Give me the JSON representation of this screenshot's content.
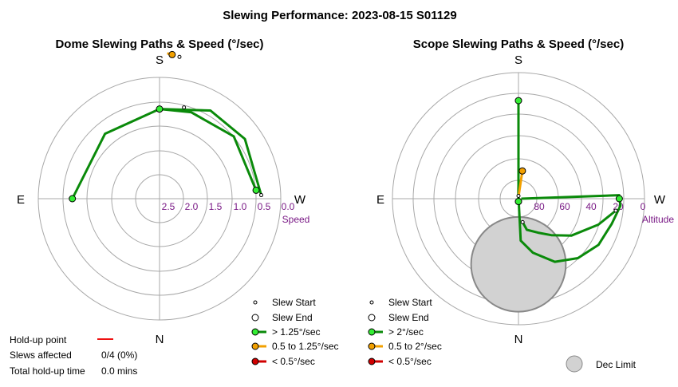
{
  "title": "Slewing Performance: 2023-08-15 S01129",
  "colors": {
    "grid": "#a8a8a8",
    "fast": "#0a8a0a",
    "fast_marker": "#33ee33",
    "medium": "#f2a000",
    "slow": "#d00000",
    "dec_limit": "#d2d2d2",
    "tick": "#7a1a86",
    "holdup": "#ee1111"
  },
  "chart_data": [
    {
      "type": "polar-path",
      "title": "Dome Slewing Paths & Speed (°/sec)",
      "directions": {
        "top": "S",
        "bottom": "N",
        "left": "E",
        "right": "W"
      },
      "radial_axis": {
        "label": "Speed",
        "ticks": [
          "2.5",
          "2.0",
          "1.5",
          "1.0",
          "0.5",
          "0.0"
        ],
        "tick_values": [
          2.5,
          2.0,
          1.5,
          1.0,
          0.5,
          0.0
        ],
        "range": [
          3.0,
          0.0
        ]
      },
      "paths": [
        {
          "speed_class": "fast",
          "points": [
            [
              270,
              1.7
            ],
            [
              220,
              1.75
            ],
            [
              180,
              1.65
            ],
            [
              160,
              1.6
            ],
            [
              130,
              1.5
            ],
            [
              95,
              1.5
            ]
          ]
        },
        {
          "speed_class": "fast",
          "points": [
            [
              180,
              1.65
            ],
            [
              150,
              1.4
            ],
            [
              125,
              1.35
            ],
            [
              92,
              1.4
            ]
          ]
        },
        {
          "speed_class": "medium",
          "points": [
            [
              177,
              0.5
            ],
            [
              175,
              0.52
            ]
          ]
        }
      ],
      "start_markers": [
        [
          172,
          0.55
        ],
        [
          165,
          1.55
        ],
        [
          92,
          1.4
        ]
      ],
      "end_markers": [
        {
          "az": 175,
          "r": 0.52,
          "speed_class": "medium"
        },
        {
          "az": 180,
          "r": 1.65,
          "speed_class": "fast"
        },
        {
          "az": 270,
          "r": 1.7,
          "speed_class": "fast"
        },
        {
          "az": 95,
          "r": 1.5,
          "speed_class": "fast"
        }
      ],
      "legend": [
        {
          "kind": "start",
          "label": "Slew Start"
        },
        {
          "kind": "end",
          "label": "Slew End"
        },
        {
          "kind": "line",
          "speed_class": "fast",
          "label": "> 1.25°/sec"
        },
        {
          "kind": "line",
          "speed_class": "medium",
          "label": "0.5 to 1.25°/sec"
        },
        {
          "kind": "line",
          "speed_class": "slow",
          "label": "< 0.5°/sec"
        }
      ]
    },
    {
      "type": "polar-path",
      "title": "Scope Slewing Paths & Speed (°/sec)",
      "directions": {
        "top": "S",
        "bottom": "N",
        "left": "E",
        "right": "W"
      },
      "radial_axis": {
        "label": "Altitude",
        "ticks": [
          "80",
          "60",
          "40",
          "20",
          "0"
        ],
        "tick_values": [
          80,
          60,
          40,
          20,
          0
        ],
        "range": [
          90,
          0
        ]
      },
      "paths": [
        {
          "speed_class": "fast",
          "points": [
            [
              90,
              88
            ],
            [
              92,
              18
            ],
            [
              86,
              17
            ],
            [
              75,
              21
            ],
            [
              60,
              24
            ],
            [
              45,
              30
            ],
            [
              30,
              38
            ],
            [
              15,
              50
            ],
            [
              3,
              60
            ],
            [
              182,
              86
            ],
            [
              180,
              80
            ],
            [
              180,
              20
            ]
          ]
        },
        {
          "speed_class": "fast",
          "points": [
            [
              83,
              20
            ],
            [
              72,
              30
            ],
            [
              55,
              44
            ],
            [
              42,
              55
            ],
            [
              30,
              62
            ],
            [
              15,
              67
            ],
            [
              10,
              73
            ]
          ]
        },
        {
          "speed_class": "medium",
          "points": [
            [
              176,
              88
            ],
            [
              172,
              70
            ]
          ]
        }
      ],
      "start_markers": [
        [
          10,
          73
        ],
        [
          180,
          88
        ],
        [
          83,
          20
        ]
      ],
      "end_markers": [
        {
          "az": 180,
          "r": 20,
          "speed_class": "fast"
        },
        {
          "az": 90,
          "r": 18,
          "speed_class": "fast"
        },
        {
          "az": 0,
          "r": 88,
          "speed_class": "fast"
        },
        {
          "az": 172,
          "r": 70,
          "speed_class": "medium"
        }
      ],
      "dec_limit": {
        "az": 0,
        "alt": 50,
        "radius_alt": 23
      },
      "legend": [
        {
          "kind": "start",
          "label": "Slew Start"
        },
        {
          "kind": "end",
          "label": "Slew End"
        },
        {
          "kind": "line",
          "speed_class": "fast",
          "label": "> 2°/sec"
        },
        {
          "kind": "line",
          "speed_class": "medium",
          "label": "0.5 to 2°/sec"
        },
        {
          "kind": "line",
          "speed_class": "slow",
          "label": "< 0.5°/sec"
        }
      ],
      "dec_limit_label": "Dec Limit"
    }
  ],
  "holdup": {
    "point_label": "Hold-up point",
    "slews_label": "Slews affected",
    "slews_value": "0/4 (0%)",
    "total_label": "Total hold-up time",
    "total_value": "0.0 mins"
  }
}
